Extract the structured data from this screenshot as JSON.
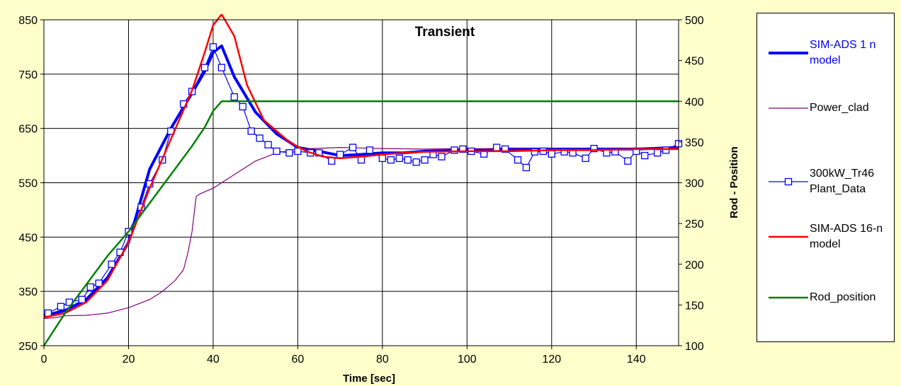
{
  "chart_data": {
    "type": "line",
    "title": "Transient",
    "xlabel": "Time [sec]",
    "ylabel": "",
    "y2label": "Rod - Position",
    "xlim": [
      0,
      150
    ],
    "ylim": [
      250,
      850
    ],
    "y2lim": [
      100,
      500
    ],
    "x_ticks": [
      "0",
      "20",
      "40",
      "60",
      "80",
      "100",
      "120",
      "140"
    ],
    "y_ticks": [
      "250",
      "350",
      "450",
      "550",
      "650",
      "750",
      "850"
    ],
    "y2_ticks": [
      "100",
      "150",
      "200",
      "250",
      "300",
      "350",
      "400",
      "450",
      "500"
    ],
    "grid": true,
    "legend_position": "right",
    "series": [
      {
        "name": "SIM-ADS 1 n\nmodel",
        "axis": "left",
        "color": "#0000ff",
        "marker": "none",
        "points": [
          [
            0,
            305
          ],
          [
            5,
            315
          ],
          [
            10,
            335
          ],
          [
            15,
            375
          ],
          [
            20,
            440
          ],
          [
            25,
            575
          ],
          [
            30,
            650
          ],
          [
            35,
            715
          ],
          [
            38,
            755
          ],
          [
            40,
            790
          ],
          [
            42,
            802
          ],
          [
            45,
            745
          ],
          [
            50,
            680
          ],
          [
            55,
            640
          ],
          [
            60,
            615
          ],
          [
            65,
            608
          ],
          [
            70,
            600
          ],
          [
            75,
            602
          ],
          [
            80,
            605
          ],
          [
            85,
            605
          ],
          [
            90,
            608
          ],
          [
            100,
            610
          ],
          [
            110,
            612
          ],
          [
            120,
            612
          ],
          [
            130,
            612
          ],
          [
            140,
            612
          ],
          [
            150,
            615
          ]
        ]
      },
      {
        "name": "Power_clad",
        "axis": "left",
        "color": "#800080",
        "marker": "none",
        "points": [
          [
            0,
            300
          ],
          [
            3,
            302
          ],
          [
            5,
            305
          ],
          [
            10,
            306
          ],
          [
            15,
            310
          ],
          [
            20,
            320
          ],
          [
            25,
            335
          ],
          [
            28,
            350
          ],
          [
            31,
            370
          ],
          [
            33,
            390
          ],
          [
            34,
            420
          ],
          [
            35,
            460
          ],
          [
            36,
            525
          ],
          [
            37,
            530
          ],
          [
            40,
            540
          ],
          [
            45,
            565
          ],
          [
            50,
            590
          ],
          [
            55,
            605
          ],
          [
            60,
            612
          ],
          [
            70,
            615
          ],
          [
            80,
            613
          ],
          [
            90,
            612
          ],
          [
            100,
            613
          ],
          [
            110,
            612
          ],
          [
            120,
            612
          ],
          [
            130,
            612
          ],
          [
            140,
            612
          ],
          [
            150,
            615
          ]
        ]
      },
      {
        "name": "300kW_Tr46\nPlant_Data",
        "axis": "left",
        "color": "#0000ff",
        "marker": "square",
        "points": [
          [
            1,
            310
          ],
          [
            4,
            322
          ],
          [
            6,
            330
          ],
          [
            9,
            335
          ],
          [
            11,
            358
          ],
          [
            13,
            365
          ],
          [
            16,
            400
          ],
          [
            18,
            422
          ],
          [
            20,
            460
          ],
          [
            23,
            505
          ],
          [
            25,
            548
          ],
          [
            28,
            592
          ],
          [
            30,
            645
          ],
          [
            33,
            695
          ],
          [
            35,
            718
          ],
          [
            38,
            762
          ],
          [
            40,
            800
          ],
          [
            42,
            762
          ],
          [
            45,
            708
          ],
          [
            47,
            690
          ],
          [
            49,
            645
          ],
          [
            51,
            632
          ],
          [
            53,
            620
          ],
          [
            55,
            608
          ],
          [
            58,
            605
          ],
          [
            60,
            608
          ],
          [
            63,
            605
          ],
          [
            65,
            605
          ],
          [
            68,
            590
          ],
          [
            70,
            602
          ],
          [
            73,
            615
          ],
          [
            75,
            592
          ],
          [
            77,
            610
          ],
          [
            80,
            595
          ],
          [
            82,
            592
          ],
          [
            84,
            595
          ],
          [
            86,
            592
          ],
          [
            88,
            588
          ],
          [
            90,
            592
          ],
          [
            92,
            602
          ],
          [
            94,
            598
          ],
          [
            97,
            610
          ],
          [
            99,
            612
          ],
          [
            101,
            608
          ],
          [
            104,
            603
          ],
          [
            107,
            615
          ],
          [
            109,
            612
          ],
          [
            112,
            592
          ],
          [
            114,
            578
          ],
          [
            116,
            607
          ],
          [
            118,
            608
          ],
          [
            120,
            603
          ],
          [
            123,
            607
          ],
          [
            125,
            605
          ],
          [
            128,
            595
          ],
          [
            130,
            613
          ],
          [
            133,
            605
          ],
          [
            135,
            607
          ],
          [
            138,
            590
          ],
          [
            140,
            608
          ],
          [
            142,
            600
          ],
          [
            145,
            605
          ],
          [
            147,
            610
          ],
          [
            150,
            622
          ]
        ]
      },
      {
        "name": "SIM-ADS 16-n\nmodel",
        "axis": "left",
        "color": "#ff0000",
        "marker": "none",
        "points": [
          [
            0,
            302
          ],
          [
            5,
            310
          ],
          [
            10,
            330
          ],
          [
            15,
            370
          ],
          [
            20,
            440
          ],
          [
            25,
            540
          ],
          [
            30,
            630
          ],
          [
            35,
            720
          ],
          [
            38,
            790
          ],
          [
            40,
            840
          ],
          [
            42,
            860
          ],
          [
            45,
            820
          ],
          [
            48,
            730
          ],
          [
            52,
            665
          ],
          [
            58,
            625
          ],
          [
            62,
            608
          ],
          [
            66,
            598
          ],
          [
            70,
            595
          ],
          [
            75,
            598
          ],
          [
            80,
            602
          ],
          [
            85,
            605
          ],
          [
            90,
            607
          ],
          [
            100,
            608
          ],
          [
            110,
            608
          ],
          [
            120,
            610
          ],
          [
            130,
            610
          ],
          [
            140,
            612
          ],
          [
            150,
            612
          ]
        ]
      },
      {
        "name": "Rod_position",
        "axis": "right",
        "color": "#008000",
        "marker": "none",
        "points": [
          [
            0,
            100
          ],
          [
            5,
            140
          ],
          [
            10,
            175
          ],
          [
            15,
            210
          ],
          [
            20,
            240
          ],
          [
            25,
            275
          ],
          [
            30,
            310
          ],
          [
            35,
            345
          ],
          [
            38,
            368
          ],
          [
            40,
            388
          ],
          [
            42,
            400
          ],
          [
            45,
            400
          ],
          [
            150,
            400
          ]
        ]
      }
    ]
  }
}
